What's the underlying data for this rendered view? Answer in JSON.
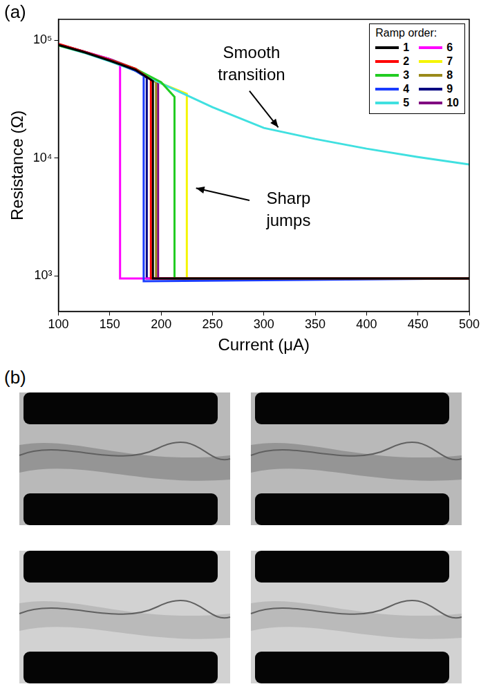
{
  "chart_data": {
    "type": "line",
    "panel_label": "(a)",
    "x_label": "Current (μA)",
    "y_label": "Resistance (Ω)",
    "log": "y",
    "grid": false,
    "xlim": [
      100,
      500
    ],
    "xticks": [
      100,
      150,
      200,
      250,
      300,
      350,
      400,
      450,
      500
    ],
    "ylim": [
      500,
      150000
    ],
    "yticks": [
      {
        "value": 1000,
        "label": "10³"
      },
      {
        "value": 10000,
        "label": "10⁴"
      },
      {
        "value": 100000,
        "label": "10⁵"
      }
    ],
    "legend": "top right",
    "legend_title": "Ramp order:",
    "annotations": [
      "Smooth transition",
      "Sharp jumps"
    ],
    "series": [
      {
        "name": "1",
        "color": "#000000",
        "x": [
          100,
          125,
          150,
          175,
          192,
          192,
          500
        ],
        "values": [
          91000,
          79000,
          67000,
          56000,
          45000,
          950,
          950
        ]
      },
      {
        "name": "2",
        "color": "#ff0000",
        "x": [
          100,
          125,
          150,
          175,
          190,
          190,
          500
        ],
        "values": [
          93000,
          80000,
          68000,
          57000,
          46000,
          950,
          950
        ]
      },
      {
        "name": "3",
        "color": "#22cc22",
        "x": [
          100,
          125,
          150,
          175,
          200,
          213,
          213,
          500
        ],
        "values": [
          90000,
          79000,
          68000,
          57000,
          44000,
          33000,
          950,
          950
        ]
      },
      {
        "name": "4",
        "color": "#1a3cff",
        "x": [
          100,
          125,
          150,
          175,
          183,
          183,
          500
        ],
        "values": [
          92000,
          80000,
          68000,
          55000,
          50000,
          900,
          950
        ]
      },
      {
        "name": "5",
        "color": "#40e0e0",
        "x": [
          100,
          125,
          150,
          175,
          200,
          225,
          250,
          275,
          300,
          350,
          400,
          450,
          500
        ],
        "values": [
          90000,
          78000,
          66000,
          55000,
          43000,
          34000,
          27000,
          22000,
          18000,
          14500,
          12000,
          10200,
          8800
        ]
      },
      {
        "name": "6",
        "color": "#ff00ff",
        "x": [
          100,
          125,
          150,
          160,
          160,
          500
        ],
        "values": [
          92000,
          80000,
          69000,
          61000,
          950,
          950
        ]
      },
      {
        "name": "7",
        "color": "#f5f500",
        "x": [
          100,
          125,
          150,
          175,
          200,
          225,
          225,
          500
        ],
        "values": [
          91000,
          80000,
          68000,
          55000,
          43000,
          35000,
          950,
          950
        ]
      },
      {
        "name": "8",
        "color": "#9a8a1a",
        "x": [
          100,
          125,
          150,
          175,
          195,
          195,
          500
        ],
        "values": [
          92000,
          80000,
          68000,
          57000,
          44000,
          950,
          950
        ]
      },
      {
        "name": "9",
        "color": "#000080",
        "x": [
          100,
          125,
          150,
          175,
          186,
          186,
          500
        ],
        "values": [
          92000,
          80000,
          68000,
          55000,
          48000,
          950,
          950
        ]
      },
      {
        "name": "10",
        "color": "#800080",
        "x": [
          100,
          125,
          150,
          175,
          197,
          197,
          500
        ],
        "values": [
          91000,
          80000,
          69000,
          57000,
          43000,
          950,
          950
        ]
      }
    ]
  },
  "panel_b": {
    "label": "(b)"
  }
}
